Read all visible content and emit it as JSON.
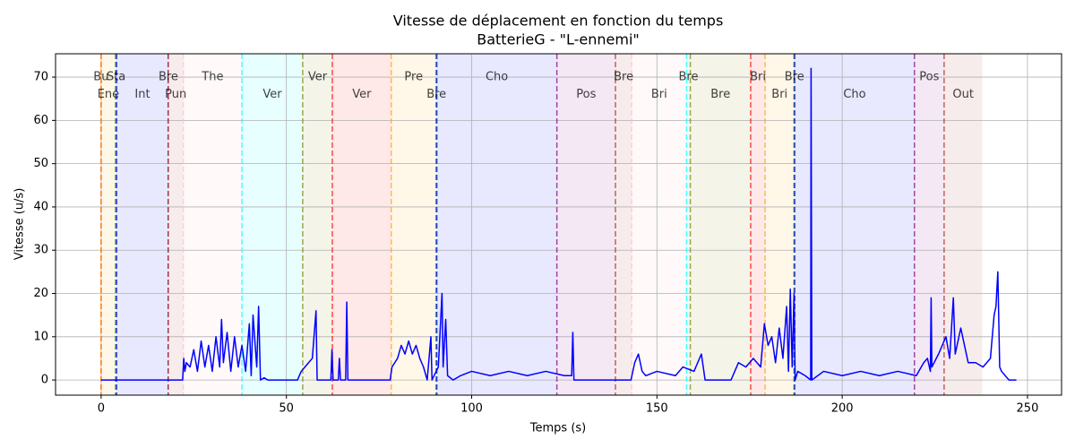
{
  "chart_data": {
    "type": "line",
    "title": "Vitesse de déplacement en fonction du temps",
    "subtitle": "BatterieG - \"L-ennemi\"",
    "x_label": "Temps (s)",
    "y_label": "Vitesse (u/s)",
    "xlim": [
      -12.3,
      259.2
    ],
    "ylim": [
      -3.5,
      75.4
    ],
    "xticks": [
      0,
      50,
      100,
      150,
      200,
      250
    ],
    "yticks": [
      0,
      10,
      20,
      30,
      40,
      50,
      60,
      70
    ],
    "grid": true,
    "label_levels": [
      70,
      66
    ],
    "events": [
      {
        "label": "Bu",
        "start": 0,
        "end": 0,
        "color": "red"
      },
      {
        "label": "Ene",
        "start": 0,
        "end": 3.9,
        "color": "orange"
      },
      {
        "label": "Sta",
        "start": 3.9,
        "end": 4.2,
        "color": "green"
      },
      {
        "label": "Int",
        "start": 4.2,
        "end": 18.1,
        "color": "blue"
      },
      {
        "label": "Bre",
        "start": 18.1,
        "end": 18.2,
        "color": "purple"
      },
      {
        "label": "Pun",
        "start": 18.1,
        "end": 22.2,
        "color": "brown"
      },
      {
        "label": "The",
        "start": 22.2,
        "end": 38,
        "color": "pink"
      },
      {
        "label": "Ver",
        "start": 38,
        "end": 54.4,
        "color": "cyan"
      },
      {
        "label": "Ver",
        "start": 54.4,
        "end": 62.4,
        "color": "olive"
      },
      {
        "label": "Ver",
        "start": 62.4,
        "end": 78.3,
        "color": "red"
      },
      {
        "label": "Pre",
        "start": 78.3,
        "end": 90.4,
        "color": "orange"
      },
      {
        "label": "Bre",
        "start": 90.4,
        "end": 90.6,
        "color": "green"
      },
      {
        "label": "Cho",
        "start": 90.6,
        "end": 123,
        "color": "blue"
      },
      {
        "label": "Pos",
        "start": 123,
        "end": 138.8,
        "color": "purple"
      },
      {
        "label": "Bre",
        "start": 138.8,
        "end": 143.2,
        "color": "brown"
      },
      {
        "label": "Bri",
        "start": 143.2,
        "end": 158,
        "color": "pink"
      },
      {
        "label": "Bre",
        "start": 158,
        "end": 159,
        "color": "cyan"
      },
      {
        "label": "Bre",
        "start": 159,
        "end": 175.3,
        "color": "olive"
      },
      {
        "label": "Bri",
        "start": 175.3,
        "end": 179.2,
        "color": "red"
      },
      {
        "label": "Bri",
        "start": 179.2,
        "end": 187,
        "color": "orange"
      },
      {
        "label": "Bre",
        "start": 187,
        "end": 187.2,
        "color": "green"
      },
      {
        "label": "Cho",
        "start": 187.2,
        "end": 219.5,
        "color": "blue"
      },
      {
        "label": "Pos",
        "start": 219.5,
        "end": 227.5,
        "color": "purple"
      },
      {
        "label": "Out",
        "start": 227.5,
        "end": 237.8,
        "color": "brown"
      }
    ],
    "x": [
      0,
      22,
      22.3,
      22.6,
      23,
      24,
      25,
      26,
      27,
      28,
      29,
      30,
      31,
      32,
      32.5,
      33,
      34,
      35,
      36,
      37,
      38,
      39,
      40,
      40.5,
      41,
      42,
      42.5,
      43,
      44,
      45,
      53,
      54,
      55,
      56,
      57,
      58,
      58.3,
      62,
      62.3,
      62.6,
      64,
      64.3,
      64.6,
      66,
      66.3,
      66.6,
      78,
      78.5,
      80,
      81,
      82,
      83,
      84,
      85,
      86,
      87,
      88,
      89,
      89.3,
      91,
      92,
      92.3,
      93,
      93.5,
      95,
      97,
      100,
      105,
      110,
      115,
      120,
      125,
      127,
      127.3,
      127.6,
      143,
      144,
      145,
      146,
      147,
      150,
      155,
      157,
      160,
      162,
      163,
      170,
      172,
      174,
      176,
      178,
      179,
      180,
      181,
      182,
      183,
      184,
      185,
      185.5,
      186,
      186.5,
      187,
      187.3,
      188,
      190,
      191.5,
      191.6,
      191.8,
      195,
      200,
      205,
      210,
      215,
      220,
      222,
      223,
      223.8,
      224,
      224.2,
      226,
      228,
      229,
      230,
      230.5,
      232,
      234,
      236,
      238,
      240,
      241,
      241.5,
      242,
      242.5,
      243,
      245,
      247
    ],
    "series": [
      {
        "color": "blue",
        "values": [
          0,
          0,
          5,
          2,
          4,
          3,
          7,
          2,
          9,
          3,
          8,
          2,
          10,
          3,
          14,
          4,
          11,
          2,
          10,
          3,
          8,
          2,
          13,
          1,
          15,
          3,
          17,
          0,
          0.5,
          0,
          0,
          2,
          3,
          4,
          5,
          16,
          0,
          0,
          7,
          0,
          0,
          5,
          0,
          0,
          18,
          0,
          0,
          3,
          5,
          8,
          6,
          9,
          6,
          8,
          5,
          3,
          0,
          10,
          0,
          3,
          20,
          3,
          14,
          1,
          0,
          1,
          2,
          1,
          2,
          1,
          2,
          1,
          1,
          11,
          0,
          0,
          4,
          6,
          2,
          1,
          2,
          1,
          3,
          2,
          6,
          0,
          0,
          4,
          3,
          5,
          3,
          13,
          8,
          10,
          4,
          12,
          5,
          17,
          2,
          21,
          3,
          20,
          0,
          2,
          1,
          0,
          72,
          0,
          2,
          1,
          2,
          1,
          2,
          1,
          4,
          5,
          2,
          19,
          3,
          6,
          10,
          5,
          19,
          6,
          12,
          4,
          4,
          3,
          5,
          15,
          17,
          25,
          3,
          2,
          0,
          0
        ]
      }
    ]
  }
}
